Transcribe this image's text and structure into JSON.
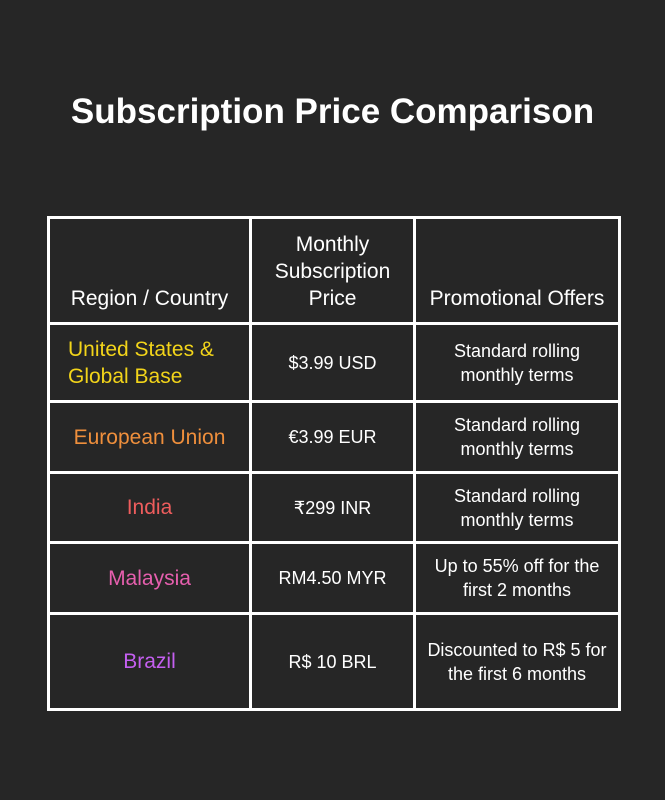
{
  "header": {
    "title": "Subscription Price Comparison"
  },
  "table": {
    "columns": [
      "Region / Country",
      "Monthly Subscription Price",
      "Promotional Offers"
    ],
    "rows": [
      [
        "United States & Global Base",
        "$3.99 USD",
        "Standard rolling monthly terms"
      ],
      [
        "European Union",
        "€3.99 EUR",
        "Standard rolling monthly terms"
      ],
      [
        "India",
        "₹299 INR",
        "Standard rolling monthly terms"
      ],
      [
        "Malaysia",
        "RM4.50 MYR",
        "Up to 55% off for the first 2 months"
      ],
      [
        "Brazil",
        "R$ 10 BRL",
        "Discounted to R$ 5 for the first 6 months"
      ]
    ]
  }
}
